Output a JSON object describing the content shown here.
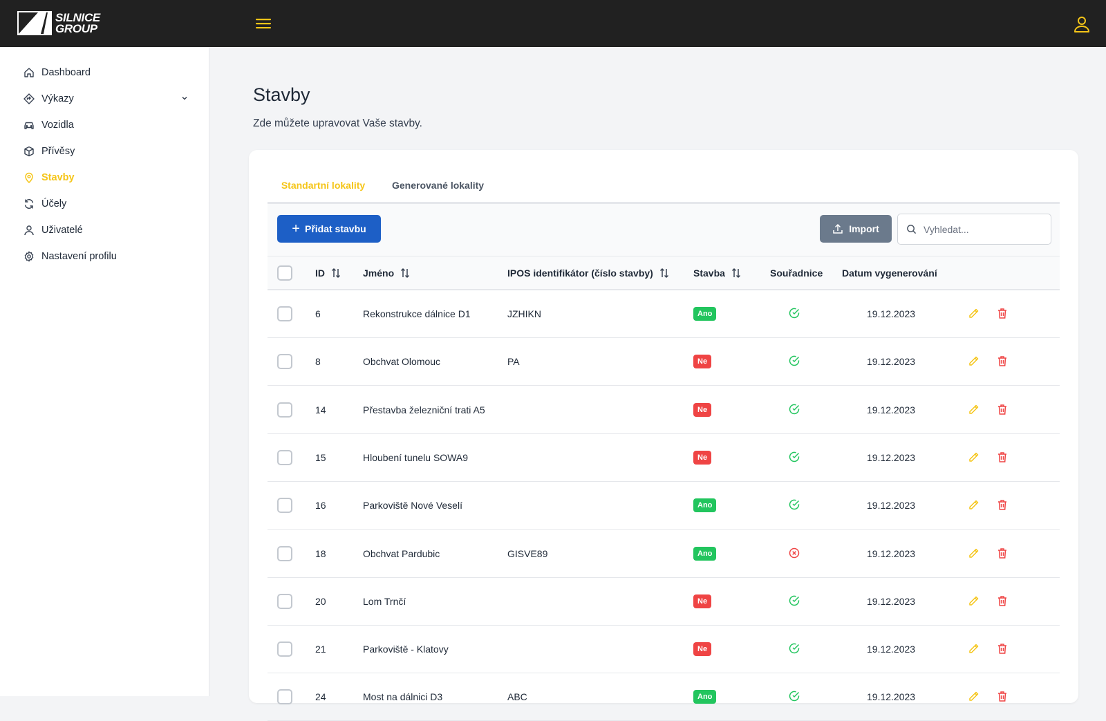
{
  "brand": {
    "line1": "SILNICE",
    "line2": "GROUP"
  },
  "sidebar": {
    "items": [
      {
        "label": "Dashboard",
        "icon": "home-icon"
      },
      {
        "label": "Výkazy",
        "icon": "diamond-arrow-icon",
        "expandable": true
      },
      {
        "label": "Vozidla",
        "icon": "car-icon"
      },
      {
        "label": "Přívěsy",
        "icon": "box-icon"
      },
      {
        "label": "Stavby",
        "icon": "map-pin-icon",
        "active": true
      },
      {
        "label": "Účely",
        "icon": "refresh-icon"
      },
      {
        "label": "Uživatelé",
        "icon": "user-icon"
      },
      {
        "label": "Nastavení profilu",
        "icon": "gear-icon"
      }
    ]
  },
  "page": {
    "title": "Stavby",
    "subtitle": "Zde můžete upravovat Vaše stavby."
  },
  "tabs": [
    {
      "label": "Standartní lokality",
      "active": true
    },
    {
      "label": "Generované lokality",
      "active": false
    }
  ],
  "toolbar": {
    "add_label": "Přidat stavbu",
    "import_label": "Import",
    "search_placeholder": "Vyhledat..."
  },
  "table": {
    "headers": {
      "id": "ID",
      "name": "Jméno",
      "ipos": "IPOS identifikátor (číslo stavby)",
      "stavba": "Stavba",
      "coords": "Souřadnice",
      "date": "Datum vygenerování"
    },
    "rows": [
      {
        "id": "6",
        "name": "Rekonstrukce dálnice D1",
        "ipos": "JZHIKN",
        "stavba": "Ano",
        "coords": true,
        "date": "19.12.2023"
      },
      {
        "id": "8",
        "name": "Obchvat Olomouc",
        "ipos": "PA",
        "stavba": "Ne",
        "coords": true,
        "date": "19.12.2023"
      },
      {
        "id": "14",
        "name": "Přestavba železniční trati A5",
        "ipos": "",
        "stavba": "Ne",
        "coords": true,
        "date": "19.12.2023"
      },
      {
        "id": "15",
        "name": "Hloubení tunelu SOWA9",
        "ipos": "",
        "stavba": "Ne",
        "coords": true,
        "date": "19.12.2023"
      },
      {
        "id": "16",
        "name": "Parkoviště Nové Veselí",
        "ipos": "",
        "stavba": "Ano",
        "coords": true,
        "date": "19.12.2023"
      },
      {
        "id": "18",
        "name": "Obchvat Pardubic",
        "ipos": "GISVE89",
        "stavba": "Ano",
        "coords": false,
        "date": "19.12.2023"
      },
      {
        "id": "20",
        "name": "Lom Trnčí",
        "ipos": "",
        "stavba": "Ne",
        "coords": true,
        "date": "19.12.2023"
      },
      {
        "id": "21",
        "name": "Parkoviště - Klatovy",
        "ipos": "",
        "stavba": "Ne",
        "coords": true,
        "date": "19.12.2023"
      },
      {
        "id": "24",
        "name": "Most na dálnici D3",
        "ipos": "ABC",
        "stavba": "Ano",
        "coords": true,
        "date": "19.12.2023"
      }
    ]
  },
  "colors": {
    "accent": "#f5c518",
    "primary_button": "#1d5fc6",
    "import_button": "#6b7a8c",
    "yes": "#22c55e",
    "no": "#ef4444",
    "topbar": "#212121"
  }
}
